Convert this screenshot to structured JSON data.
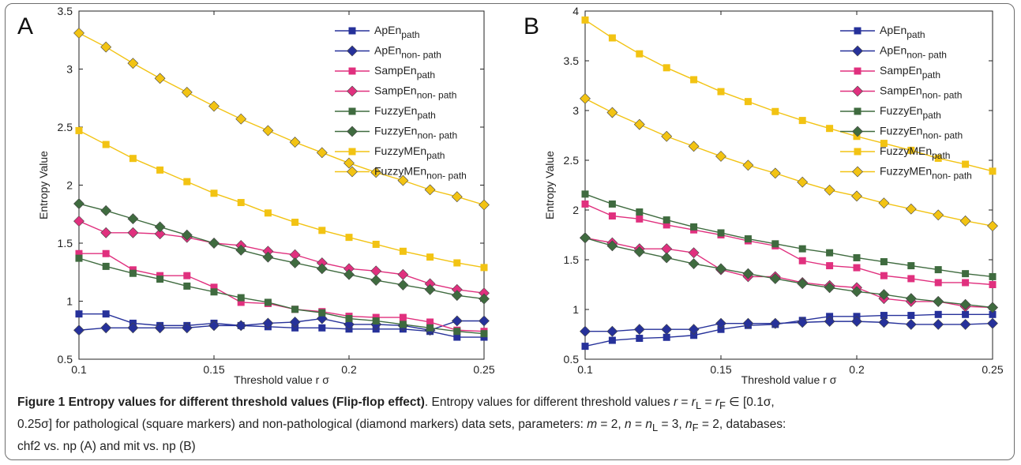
{
  "caption": {
    "figure_title": "Figure 1 Entropy values for different threshold values (Flip-flop effect)",
    "line1": ". Entropy values for different threshold values ",
    "r": "r",
    "eq1": " = ",
    "rL": "r",
    "L": "L",
    "eq2": " = ",
    "rF": "r",
    "F": "F",
    "interval_open": " ∈ [0.1σ,",
    "line2": "0.25σ] for pathological (square markers) and non-pathological (diamond markers) data sets, parameters: ",
    "m": "m",
    "m_val": " = 2, ",
    "n": "n",
    "n_eq": " = ",
    "nL": "n",
    "nL_sub": "L",
    "nL_val": " = 3, ",
    "nF": "n",
    "nF_sub": "F",
    "nF_val": " = 2, databases:",
    "line3": "chf2 vs. np (A) and mit vs. np (B)"
  },
  "colors": {
    "ApEn": "#26319a",
    "SampEn": "#e0307e",
    "FuzzyEn": "#3f6b3f",
    "FuzzyMEn": "#f2c313"
  },
  "chart_data": [
    {
      "type": "line",
      "panel_label": "A",
      "xlabel": "Threshold value r σ",
      "ylabel": "Entropy Value",
      "xlim": [
        0.1,
        0.25
      ],
      "ylim": [
        0.5,
        3.5
      ],
      "xticks": [
        "0.1",
        "0.15",
        "0.2",
        "0.25"
      ],
      "yticks": [
        "0.5",
        "1",
        "1.5",
        "2",
        "2.5",
        "3",
        "3.5"
      ],
      "x": [
        0.1,
        0.11,
        0.12,
        0.13,
        0.14,
        0.15,
        0.16,
        0.17,
        0.18,
        0.19,
        0.2,
        0.21,
        0.22,
        0.23,
        0.24,
        0.25
      ],
      "legend_position": "top-right",
      "series": [
        {
          "name": "ApEn",
          "sub": "path",
          "group": "ApEn",
          "marker": "square",
          "values": [
            0.89,
            0.89,
            0.81,
            0.79,
            0.79,
            0.81,
            0.79,
            0.78,
            0.77,
            0.77,
            0.76,
            0.76,
            0.76,
            0.74,
            0.69,
            0.69
          ]
        },
        {
          "name": "ApEn",
          "sub": "non- path",
          "group": "ApEn",
          "marker": "diamond",
          "values": [
            0.75,
            0.77,
            0.77,
            0.77,
            0.77,
            0.79,
            0.79,
            0.81,
            0.82,
            0.85,
            0.8,
            0.8,
            0.79,
            0.75,
            0.83,
            0.83
          ]
        },
        {
          "name": "SampEn",
          "sub": "path",
          "group": "SampEn",
          "marker": "square",
          "values": [
            1.41,
            1.41,
            1.27,
            1.22,
            1.22,
            1.12,
            0.99,
            0.98,
            0.93,
            0.91,
            0.87,
            0.86,
            0.86,
            0.82,
            0.75,
            0.74
          ]
        },
        {
          "name": "SampEn",
          "sub": "non- path",
          "group": "SampEn",
          "marker": "diamond",
          "values": [
            1.69,
            1.59,
            1.59,
            1.58,
            1.55,
            1.5,
            1.48,
            1.43,
            1.4,
            1.33,
            1.28,
            1.26,
            1.23,
            1.15,
            1.1,
            1.07
          ]
        },
        {
          "name": "FuzzyEn",
          "sub": "path",
          "group": "FuzzyEn",
          "marker": "square",
          "values": [
            1.37,
            1.3,
            1.24,
            1.19,
            1.13,
            1.08,
            1.03,
            0.99,
            0.93,
            0.9,
            0.85,
            0.83,
            0.8,
            0.77,
            0.74,
            0.72
          ]
        },
        {
          "name": "FuzzyEn",
          "sub": "non- path",
          "group": "FuzzyEn",
          "marker": "diamond",
          "values": [
            1.84,
            1.78,
            1.71,
            1.64,
            1.57,
            1.5,
            1.44,
            1.38,
            1.33,
            1.28,
            1.23,
            1.18,
            1.14,
            1.1,
            1.05,
            1.02
          ]
        },
        {
          "name": "FuzzyMEn",
          "sub": "path",
          "group": "FuzzyMEn",
          "marker": "square",
          "values": [
            2.47,
            2.35,
            2.23,
            2.13,
            2.03,
            1.93,
            1.85,
            1.76,
            1.68,
            1.61,
            1.55,
            1.49,
            1.43,
            1.38,
            1.33,
            1.29
          ]
        },
        {
          "name": "FuzzyMEn",
          "sub": "non- path",
          "group": "FuzzyMEn",
          "marker": "diamond",
          "values": [
            3.31,
            3.19,
            3.05,
            2.92,
            2.8,
            2.68,
            2.57,
            2.47,
            2.37,
            2.28,
            2.19,
            2.11,
            2.04,
            1.96,
            1.9,
            1.83
          ]
        }
      ]
    },
    {
      "type": "line",
      "panel_label": "B",
      "xlabel": "Threshold value r σ",
      "ylabel": "Entropy Value",
      "xlim": [
        0.1,
        0.25
      ],
      "ylim": [
        0.5,
        4
      ],
      "xticks": [
        "0.1",
        "0.15",
        "0.2",
        "0.25"
      ],
      "yticks": [
        "0.5",
        "1",
        "1.5",
        "2",
        "2.5",
        "3",
        "3.5",
        "4"
      ],
      "x": [
        0.1,
        0.11,
        0.12,
        0.13,
        0.14,
        0.15,
        0.16,
        0.17,
        0.18,
        0.19,
        0.2,
        0.21,
        0.22,
        0.23,
        0.24,
        0.25
      ],
      "legend_position": "top-right",
      "series": [
        {
          "name": "ApEn",
          "sub": "path",
          "group": "ApEn",
          "marker": "square",
          "values": [
            0.63,
            0.69,
            0.71,
            0.72,
            0.74,
            0.8,
            0.84,
            0.85,
            0.89,
            0.93,
            0.93,
            0.94,
            0.94,
            0.95,
            0.95,
            0.95
          ]
        },
        {
          "name": "ApEn",
          "sub": "non- path",
          "group": "ApEn",
          "marker": "diamond",
          "values": [
            0.78,
            0.78,
            0.8,
            0.8,
            0.8,
            0.86,
            0.86,
            0.86,
            0.87,
            0.88,
            0.88,
            0.87,
            0.85,
            0.85,
            0.85,
            0.86
          ]
        },
        {
          "name": "SampEn",
          "sub": "path",
          "group": "SampEn",
          "marker": "square",
          "values": [
            2.06,
            1.94,
            1.91,
            1.85,
            1.8,
            1.75,
            1.69,
            1.64,
            1.49,
            1.44,
            1.42,
            1.34,
            1.31,
            1.27,
            1.27,
            1.25
          ]
        },
        {
          "name": "SampEn",
          "sub": "non- path",
          "group": "SampEn",
          "marker": "diamond",
          "values": [
            1.72,
            1.67,
            1.61,
            1.61,
            1.57,
            1.4,
            1.33,
            1.33,
            1.27,
            1.24,
            1.22,
            1.11,
            1.08,
            1.08,
            1.03,
            1.02
          ]
        },
        {
          "name": "FuzzyEn",
          "sub": "path",
          "group": "FuzzyEn",
          "marker": "square",
          "values": [
            2.16,
            2.06,
            1.98,
            1.9,
            1.83,
            1.77,
            1.71,
            1.66,
            1.61,
            1.57,
            1.52,
            1.48,
            1.44,
            1.4,
            1.36,
            1.33
          ]
        },
        {
          "name": "FuzzyEn",
          "sub": "non- path",
          "group": "FuzzyEn",
          "marker": "diamond",
          "values": [
            1.72,
            1.64,
            1.58,
            1.52,
            1.46,
            1.41,
            1.36,
            1.31,
            1.26,
            1.22,
            1.18,
            1.15,
            1.11,
            1.08,
            1.05,
            1.02
          ]
        },
        {
          "name": "FuzzyMEn",
          "sub": "path",
          "group": "FuzzyMEn",
          "marker": "square",
          "values": [
            3.91,
            3.73,
            3.57,
            3.43,
            3.31,
            3.19,
            3.09,
            2.99,
            2.9,
            2.82,
            2.74,
            2.67,
            2.6,
            2.52,
            2.46,
            2.39
          ]
        },
        {
          "name": "FuzzyMEn",
          "sub": "non- path",
          "group": "FuzzyMEn",
          "marker": "diamond",
          "values": [
            3.12,
            2.98,
            2.86,
            2.74,
            2.64,
            2.54,
            2.45,
            2.37,
            2.28,
            2.2,
            2.14,
            2.07,
            2.01,
            1.95,
            1.89,
            1.84
          ]
        }
      ]
    }
  ]
}
